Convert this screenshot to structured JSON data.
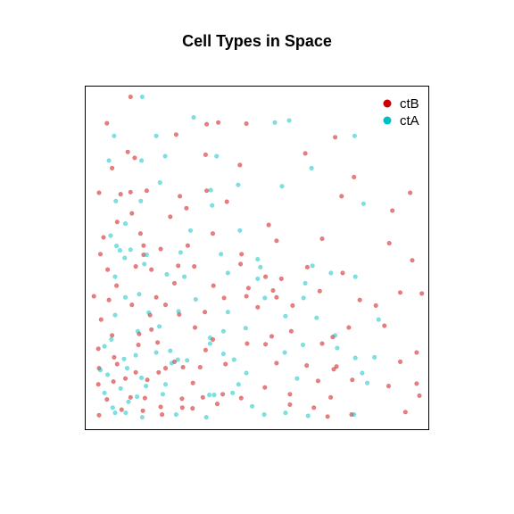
{
  "chart_data": {
    "type": "scatter",
    "title": "Cell Types in Space",
    "xlabel": "",
    "ylabel": "",
    "axes_visible": false,
    "box": true,
    "xlim": [
      0,
      100
    ],
    "ylim": [
      0,
      100
    ],
    "point_alpha": 0.5,
    "legend": {
      "placement": "top-right"
    },
    "series": [
      {
        "name": "ctB",
        "color": "#CD0000",
        "points": [
          {
            "x": 13.1,
            "y": 97.0
          },
          {
            "x": 6.2,
            "y": 89.3
          },
          {
            "x": 35.3,
            "y": 89.0
          },
          {
            "x": 38.7,
            "y": 89.5
          },
          {
            "x": 46.9,
            "y": 89.2
          },
          {
            "x": 26.4,
            "y": 86.0
          },
          {
            "x": 72.8,
            "y": 85.2
          },
          {
            "x": 7.7,
            "y": 76.2
          },
          {
            "x": 12.3,
            "y": 80.9
          },
          {
            "x": 14.3,
            "y": 79.2
          },
          {
            "x": 35.0,
            "y": 80.1
          },
          {
            "x": 45.0,
            "y": 77.1
          },
          {
            "x": 64.1,
            "y": 80.5
          },
          {
            "x": 3.9,
            "y": 69.0
          },
          {
            "x": 10.2,
            "y": 68.6
          },
          {
            "x": 13.1,
            "y": 69.2
          },
          {
            "x": 17.8,
            "y": 69.6
          },
          {
            "x": 27.5,
            "y": 68.0
          },
          {
            "x": 35.3,
            "y": 69.6
          },
          {
            "x": 41.2,
            "y": 66.4
          },
          {
            "x": 74.7,
            "y": 68.0
          },
          {
            "x": 78.3,
            "y": 73.6
          },
          {
            "x": 94.7,
            "y": 69.0
          },
          {
            "x": 9.2,
            "y": 60.5
          },
          {
            "x": 13.5,
            "y": 63.0
          },
          {
            "x": 24.7,
            "y": 62.0
          },
          {
            "x": 29.4,
            "y": 64.5
          },
          {
            "x": 53.4,
            "y": 59.6
          },
          {
            "x": 89.5,
            "y": 63.8
          },
          {
            "x": 16.0,
            "y": 57.1
          },
          {
            "x": 37.1,
            "y": 57.1
          },
          {
            "x": 5.2,
            "y": 56.0
          },
          {
            "x": 16.9,
            "y": 53.6
          },
          {
            "x": 21.9,
            "y": 52.6
          },
          {
            "x": 29.8,
            "y": 53.6
          },
          {
            "x": 55.7,
            "y": 55.0
          },
          {
            "x": 69.0,
            "y": 55.6
          },
          {
            "x": 88.6,
            "y": 54.3
          },
          {
            "x": 4.3,
            "y": 51.1
          },
          {
            "x": 16.9,
            "y": 50.9
          },
          {
            "x": 45.5,
            "y": 51.1
          },
          {
            "x": 95.3,
            "y": 49.3
          },
          {
            "x": 6.4,
            "y": 46.6
          },
          {
            "x": 14.6,
            "y": 47.5
          },
          {
            "x": 19.2,
            "y": 46.6
          },
          {
            "x": 27.0,
            "y": 47.7
          },
          {
            "x": 31.7,
            "y": 47.5
          },
          {
            "x": 45.2,
            "y": 48.2
          },
          {
            "x": 52.5,
            "y": 44.5
          },
          {
            "x": 57.1,
            "y": 43.9
          },
          {
            "x": 64.7,
            "y": 47.3
          },
          {
            "x": 75.0,
            "y": 45.6
          },
          {
            "x": 9.0,
            "y": 41.9
          },
          {
            "x": 25.9,
            "y": 42.6
          },
          {
            "x": 37.3,
            "y": 41.9
          },
          {
            "x": 47.5,
            "y": 41.2
          },
          {
            "x": 54.7,
            "y": 40.5
          },
          {
            "x": 68.3,
            "y": 40.3
          },
          {
            "x": 2.4,
            "y": 38.8
          },
          {
            "x": 6.8,
            "y": 37.7
          },
          {
            "x": 13.5,
            "y": 36.3
          },
          {
            "x": 20.6,
            "y": 38.5
          },
          {
            "x": 23.3,
            "y": 36.3
          },
          {
            "x": 40.4,
            "y": 38.3
          },
          {
            "x": 46.9,
            "y": 38.8
          },
          {
            "x": 55.7,
            "y": 38.5
          },
          {
            "x": 80.0,
            "y": 37.7
          },
          {
            "x": 84.7,
            "y": 36.1
          },
          {
            "x": 91.8,
            "y": 39.9
          },
          {
            "x": 98.1,
            "y": 39.6
          },
          {
            "x": 4.5,
            "y": 32.0
          },
          {
            "x": 18.8,
            "y": 33.3
          },
          {
            "x": 27.3,
            "y": 33.5
          },
          {
            "x": 34.8,
            "y": 34.2
          },
          {
            "x": 50.2,
            "y": 35.6
          },
          {
            "x": 60.4,
            "y": 36.1
          },
          {
            "x": 7.7,
            "y": 27.4
          },
          {
            "x": 15.6,
            "y": 27.8
          },
          {
            "x": 19.2,
            "y": 29.1
          },
          {
            "x": 31.9,
            "y": 29.7
          },
          {
            "x": 37.1,
            "y": 26.2
          },
          {
            "x": 54.3,
            "y": 27.1
          },
          {
            "x": 60.0,
            "y": 28.6
          },
          {
            "x": 76.8,
            "y": 29.7
          },
          {
            "x": 87.2,
            "y": 30.2
          },
          {
            "x": 3.7,
            "y": 23.5
          },
          {
            "x": 8.3,
            "y": 21.0
          },
          {
            "x": 15.4,
            "y": 24.6
          },
          {
            "x": 21.0,
            "y": 25.3
          },
          {
            "x": 25.9,
            "y": 19.7
          },
          {
            "x": 35.0,
            "y": 23.1
          },
          {
            "x": 47.1,
            "y": 25.0
          },
          {
            "x": 52.5,
            "y": 24.8
          },
          {
            "x": 69.0,
            "y": 25.0
          },
          {
            "x": 72.1,
            "y": 26.9
          },
          {
            "x": 96.6,
            "y": 22.4
          },
          {
            "x": 3.9,
            "y": 17.8
          },
          {
            "x": 9.2,
            "y": 19.0
          },
          {
            "x": 14.6,
            "y": 16.6
          },
          {
            "x": 23.3,
            "y": 17.8
          },
          {
            "x": 28.4,
            "y": 18.1
          },
          {
            "x": 33.4,
            "y": 18.1
          },
          {
            "x": 40.8,
            "y": 19.0
          },
          {
            "x": 55.7,
            "y": 19.3
          },
          {
            "x": 64.5,
            "y": 18.6
          },
          {
            "x": 73.2,
            "y": 18.3
          },
          {
            "x": 91.8,
            "y": 19.7
          },
          {
            "x": 3.7,
            "y": 13.1
          },
          {
            "x": 8.1,
            "y": 13.9
          },
          {
            "x": 11.6,
            "y": 14.8
          },
          {
            "x": 18.0,
            "y": 14.4
          },
          {
            "x": 21.3,
            "y": 16.6
          },
          {
            "x": 31.3,
            "y": 13.5
          },
          {
            "x": 52.3,
            "y": 12.2
          },
          {
            "x": 67.8,
            "y": 14.1
          },
          {
            "x": 77.8,
            "y": 14.4
          },
          {
            "x": 88.4,
            "y": 12.6
          },
          {
            "x": 96.6,
            "y": 13.3
          },
          {
            "x": 6.2,
            "y": 8.7
          },
          {
            "x": 13.1,
            "y": 9.3
          },
          {
            "x": 17.3,
            "y": 9.1
          },
          {
            "x": 28.1,
            "y": 8.9
          },
          {
            "x": 34.2,
            "y": 9.3
          },
          {
            "x": 40.0,
            "y": 10.2
          },
          {
            "x": 45.4,
            "y": 9.1
          },
          {
            "x": 59.6,
            "y": 10.2
          },
          {
            "x": 71.5,
            "y": 9.3
          },
          {
            "x": 97.4,
            "y": 9.8
          },
          {
            "x": 3.9,
            "y": 4.1
          },
          {
            "x": 10.5,
            "y": 5.7
          },
          {
            "x": 16.7,
            "y": 5.4
          },
          {
            "x": 21.9,
            "y": 6.5
          },
          {
            "x": 22.3,
            "y": 4.3
          },
          {
            "x": 28.2,
            "y": 6.3
          },
          {
            "x": 31.2,
            "y": 6.1
          },
          {
            "x": 38.4,
            "y": 7.4
          },
          {
            "x": 59.6,
            "y": 7.2
          },
          {
            "x": 66.6,
            "y": 6.3
          },
          {
            "x": 70.6,
            "y": 3.7
          },
          {
            "x": 77.6,
            "y": 4.3
          },
          {
            "x": 93.3,
            "y": 5.0
          },
          {
            "x": 72.4,
            "y": 17.5
          }
        ]
      },
      {
        "name": "ctA",
        "color": "#00BFC4",
        "points": [
          {
            "x": 16.5,
            "y": 97.0
          },
          {
            "x": 31.5,
            "y": 91.0
          },
          {
            "x": 59.4,
            "y": 90.1
          },
          {
            "x": 55.2,
            "y": 89.5
          },
          {
            "x": 8.3,
            "y": 85.6
          },
          {
            "x": 20.6,
            "y": 85.6
          },
          {
            "x": 78.5,
            "y": 85.6
          },
          {
            "x": 23.2,
            "y": 79.7
          },
          {
            "x": 38.2,
            "y": 79.7
          },
          {
            "x": 6.8,
            "y": 78.4
          },
          {
            "x": 16.3,
            "y": 78.4
          },
          {
            "x": 65.9,
            "y": 76.2
          },
          {
            "x": 21.7,
            "y": 72.0
          },
          {
            "x": 36.5,
            "y": 69.8
          },
          {
            "x": 44.5,
            "y": 71.3
          },
          {
            "x": 57.3,
            "y": 70.9
          },
          {
            "x": 16.1,
            "y": 66.6
          },
          {
            "x": 8.8,
            "y": 66.6
          },
          {
            "x": 36.9,
            "y": 65.3
          },
          {
            "x": 81.1,
            "y": 65.8
          },
          {
            "x": 11.6,
            "y": 60.0
          },
          {
            "x": 30.6,
            "y": 58.0
          },
          {
            "x": 45.0,
            "y": 58.0
          },
          {
            "x": 7.3,
            "y": 56.5
          },
          {
            "x": 10.0,
            "y": 52.2
          },
          {
            "x": 13.1,
            "y": 52.4
          },
          {
            "x": 9.0,
            "y": 53.5
          },
          {
            "x": 11.4,
            "y": 50.0
          },
          {
            "x": 17.8,
            "y": 50.9
          },
          {
            "x": 27.7,
            "y": 51.6
          },
          {
            "x": 39.5,
            "y": 51.1
          },
          {
            "x": 50.2,
            "y": 49.6
          },
          {
            "x": 51.0,
            "y": 47.3
          },
          {
            "x": 66.2,
            "y": 47.7
          },
          {
            "x": 71.6,
            "y": 45.6
          },
          {
            "x": 8.6,
            "y": 44.5
          },
          {
            "x": 17.1,
            "y": 48.2
          },
          {
            "x": 23.7,
            "y": 45.2
          },
          {
            "x": 28.8,
            "y": 44.5
          },
          {
            "x": 41.5,
            "y": 45.6
          },
          {
            "x": 50.2,
            "y": 43.9
          },
          {
            "x": 64.1,
            "y": 42.6
          },
          {
            "x": 78.7,
            "y": 44.5
          },
          {
            "x": 11.6,
            "y": 38.5
          },
          {
            "x": 15.6,
            "y": 39.4
          },
          {
            "x": 32.1,
            "y": 37.9
          },
          {
            "x": 52.3,
            "y": 38.3
          },
          {
            "x": 63.6,
            "y": 38.3
          },
          {
            "x": 8.6,
            "y": 33.3
          },
          {
            "x": 18.4,
            "y": 34.0
          },
          {
            "x": 27.1,
            "y": 34.4
          },
          {
            "x": 41.5,
            "y": 34.2
          },
          {
            "x": 58.3,
            "y": 33.0
          },
          {
            "x": 67.4,
            "y": 32.5
          },
          {
            "x": 85.5,
            "y": 32.0
          },
          {
            "x": 15.2,
            "y": 28.6
          },
          {
            "x": 21.5,
            "y": 30.0
          },
          {
            "x": 40.2,
            "y": 28.6
          },
          {
            "x": 46.7,
            "y": 29.5
          },
          {
            "x": 72.8,
            "y": 27.4
          },
          {
            "x": 5.5,
            "y": 24.2
          },
          {
            "x": 7.5,
            "y": 26.2
          },
          {
            "x": 14.6,
            "y": 21.6
          },
          {
            "x": 20.6,
            "y": 22.4
          },
          {
            "x": 24.7,
            "y": 22.9
          },
          {
            "x": 36.3,
            "y": 26.7
          },
          {
            "x": 36.3,
            "y": 25.0
          },
          {
            "x": 40.2,
            "y": 22.0
          },
          {
            "x": 63.4,
            "y": 24.6
          },
          {
            "x": 73.4,
            "y": 23.7
          },
          {
            "x": 84.3,
            "y": 21.0
          },
          {
            "x": 11.2,
            "y": 20.5
          },
          {
            "x": 12.1,
            "y": 17.8
          },
          {
            "x": 25.1,
            "y": 19.3
          },
          {
            "x": 26.9,
            "y": 20.3
          },
          {
            "x": 29.6,
            "y": 20.1
          },
          {
            "x": 43.3,
            "y": 20.3
          },
          {
            "x": 58.1,
            "y": 22.4
          },
          {
            "x": 78.7,
            "y": 20.8
          },
          {
            "x": 4.3,
            "y": 17.3
          },
          {
            "x": 6.4,
            "y": 15.9
          },
          {
            "x": 16.3,
            "y": 15.0
          },
          {
            "x": 46.9,
            "y": 16.4
          },
          {
            "x": 80.7,
            "y": 16.4
          },
          {
            "x": 10.2,
            "y": 11.9
          },
          {
            "x": 17.6,
            "y": 12.6
          },
          {
            "x": 23.3,
            "y": 13.1
          },
          {
            "x": 44.6,
            "y": 13.1
          },
          {
            "x": 61.7,
            "y": 14.8
          },
          {
            "x": 82.2,
            "y": 13.5
          },
          {
            "x": 5.5,
            "y": 10.6
          },
          {
            "x": 22.5,
            "y": 10.2
          },
          {
            "x": 36.1,
            "y": 10.0
          },
          {
            "x": 42.9,
            "y": 10.6
          },
          {
            "x": 7.9,
            "y": 6.3
          },
          {
            "x": 8.6,
            "y": 4.8
          },
          {
            "x": 12.5,
            "y": 8.0
          },
          {
            "x": 11.7,
            "y": 4.8
          },
          {
            "x": 16.5,
            "y": 3.5
          },
          {
            "x": 26.4,
            "y": 4.3
          },
          {
            "x": 35.2,
            "y": 3.5
          },
          {
            "x": 37.5,
            "y": 10.0
          },
          {
            "x": 52.1,
            "y": 4.3
          },
          {
            "x": 58.3,
            "y": 4.8
          },
          {
            "x": 64.9,
            "y": 3.9
          },
          {
            "x": 78.3,
            "y": 4.3
          },
          {
            "x": 15.0,
            "y": 9.5
          },
          {
            "x": 48.6,
            "y": 6.7
          }
        ]
      }
    ]
  }
}
